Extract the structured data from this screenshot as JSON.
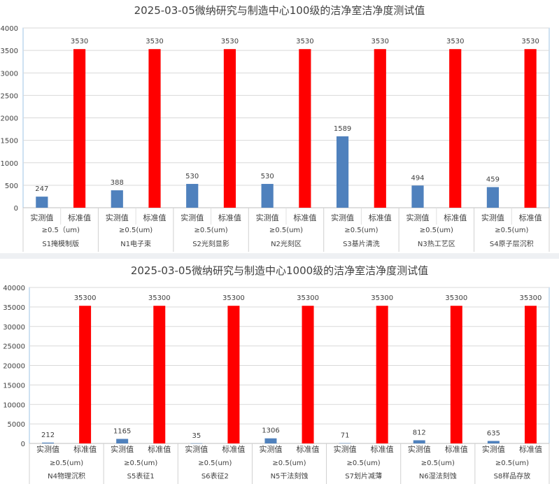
{
  "colors": {
    "measured": "#4f81bd",
    "standard": "#ff0000",
    "grid": "#d9d9d9",
    "axis_text": "#404040"
  },
  "chart_data": [
    {
      "type": "bar",
      "title": "2025-03-05微纳研究与制造中心100级的洁净室洁净度测试值",
      "ylim": [
        0,
        4000
      ],
      "yticks": [
        0,
        500,
        1000,
        1500,
        2000,
        2500,
        3000,
        3500,
        4000
      ],
      "grid": true,
      "bar_labels": [
        "实测值",
        "标准值"
      ],
      "groups": [
        {
          "spec": "≥0.5（um)",
          "name": "S1掩模制版",
          "values": [
            247,
            3530
          ]
        },
        {
          "spec": "≥0.5(um)",
          "name": "N1电子束",
          "values": [
            388,
            3530
          ]
        },
        {
          "spec": "≥0.5(um)",
          "name": "S2光刻显影",
          "values": [
            530,
            3530
          ]
        },
        {
          "spec": "≥0.5(um)",
          "name": "N2光刻区",
          "values": [
            530,
            3530
          ]
        },
        {
          "spec": "≥0.5(um)",
          "name": "S3基片清洗",
          "values": [
            1589,
            3530
          ]
        },
        {
          "spec": "≥0.5(um)",
          "name": "N3热工艺区",
          "values": [
            494,
            3530
          ]
        },
        {
          "spec": "≥0.5(um)",
          "name": "S4原子层沉积",
          "values": [
            459,
            3530
          ]
        }
      ]
    },
    {
      "type": "bar",
      "title": "2025-03-05微纳研究与制造中心1000级的洁净室洁净度测试值",
      "ylim": [
        0,
        40000
      ],
      "yticks": [
        0,
        5000,
        10000,
        15000,
        20000,
        25000,
        30000,
        35000,
        40000
      ],
      "grid": true,
      "bar_labels": [
        "实测值",
        "标准值"
      ],
      "groups": [
        {
          "spec": "≥0.5(um)",
          "name": "N4物理沉积",
          "values": [
            212,
            35300
          ]
        },
        {
          "spec": "≥0.5(um)",
          "name": "S5表征1",
          "values": [
            1165,
            35300
          ]
        },
        {
          "spec": "≥0.5(um)",
          "name": "S6表征2",
          "values": [
            35,
            35300
          ]
        },
        {
          "spec": "≥0.5(um)",
          "name": "N5干法刻蚀",
          "values": [
            1306,
            35300
          ]
        },
        {
          "spec": "≥0.5(um)",
          "name": "S7划片减薄",
          "values": [
            71,
            35300
          ]
        },
        {
          "spec": "≥0.5(um)",
          "name": "N6湿法刻蚀",
          "values": [
            812,
            35300
          ]
        },
        {
          "spec": "≥0.5(um)",
          "name": "S8样品存放",
          "values": [
            635,
            35300
          ]
        }
      ]
    }
  ]
}
